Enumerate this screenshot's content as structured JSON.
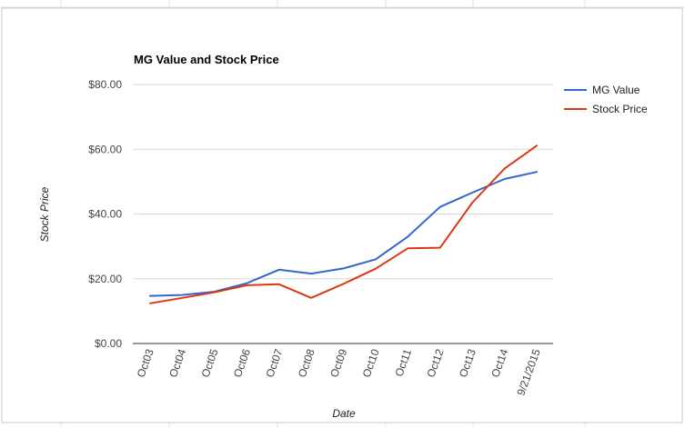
{
  "chart_data": {
    "type": "line",
    "title": "MG Value and Stock Price",
    "xlabel": "Date",
    "ylabel": "Stock Price",
    "categories": [
      "Oct03",
      "Oct04",
      "Oct05",
      "Oct06",
      "Oct07",
      "Oct08",
      "Oct09",
      "Oct10",
      "Oct11",
      "Oct12",
      "Oct13",
      "Oct14",
      "9/21/2015"
    ],
    "ylim": [
      0,
      80
    ],
    "yticks": [
      "$0.00",
      "$20.00",
      "$40.00",
      "$60.00",
      "$80.00"
    ],
    "ytick_values": [
      0,
      20,
      40,
      60,
      80
    ],
    "grid": true,
    "legend_position": "right",
    "series": [
      {
        "name": "MG Value",
        "color": "#3366cc",
        "values": [
          14.7,
          15.0,
          16.0,
          18.6,
          22.8,
          21.6,
          23.2,
          26.0,
          33.0,
          42.2,
          46.6,
          50.8,
          53.0
        ]
      },
      {
        "name": "Stock Price",
        "color": "#dc3912",
        "values": [
          12.4,
          14.1,
          15.8,
          18.0,
          18.3,
          14.1,
          18.4,
          23.1,
          29.4,
          29.6,
          43.5,
          54.0,
          61.1
        ]
      }
    ]
  }
}
